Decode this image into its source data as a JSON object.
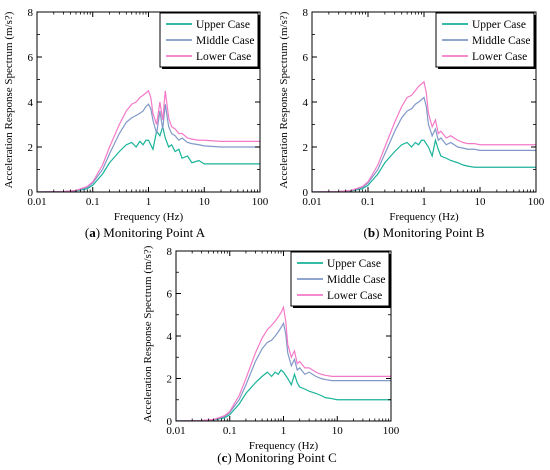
{
  "chart_data": [
    {
      "type": "line",
      "caption_tag": "a",
      "caption_text": "Monitoring Point A",
      "xlabel": "Frequency (Hz)",
      "ylabel": "Acceleration Response Spectrum (m/s?)",
      "xscale": "log",
      "xlim": [
        0.01,
        100
      ],
      "ylim": [
        0,
        8
      ],
      "xticks": [
        0.01,
        0.1,
        1,
        10,
        100
      ],
      "xtick_labels": [
        "0.01",
        "0.1",
        "1",
        "10",
        "100"
      ],
      "yticks": [
        0,
        2,
        4,
        6,
        8
      ],
      "ytick_labels": [
        "0",
        "2",
        "4",
        "6",
        "8"
      ],
      "legend_position": "top-right",
      "series": [
        {
          "name": "Upper Case",
          "color": "#1ab39a",
          "x": [
            0.01,
            0.03,
            0.05,
            0.08,
            0.1,
            0.15,
            0.2,
            0.3,
            0.4,
            0.5,
            0.6,
            0.7,
            0.8,
            0.9,
            1.0,
            1.2,
            1.4,
            1.6,
            1.8,
            2.0,
            2.3,
            2.6,
            3.0,
            3.5,
            4.0,
            5.0,
            6.0,
            8.0,
            10,
            20,
            50,
            100
          ],
          "y": [
            0.0,
            0.02,
            0.05,
            0.15,
            0.3,
            0.8,
            1.3,
            1.8,
            2.1,
            2.2,
            2.0,
            2.25,
            2.1,
            2.3,
            2.3,
            1.9,
            2.7,
            2.5,
            2.9,
            2.4,
            2.0,
            2.1,
            1.8,
            1.9,
            1.5,
            1.6,
            1.3,
            1.4,
            1.25,
            1.25,
            1.25,
            1.25
          ]
        },
        {
          "name": "Middle Case",
          "color": "#8199c8",
          "x": [
            0.01,
            0.03,
            0.05,
            0.08,
            0.1,
            0.15,
            0.2,
            0.3,
            0.4,
            0.5,
            0.6,
            0.7,
            0.8,
            0.9,
            1.0,
            1.1,
            1.2,
            1.4,
            1.6,
            1.8,
            2.0,
            2.3,
            2.6,
            3.0,
            3.5,
            4.0,
            5.0,
            6.0,
            8.0,
            10,
            20,
            50,
            100
          ],
          "y": [
            0.0,
            0.02,
            0.06,
            0.2,
            0.4,
            1.0,
            1.7,
            2.6,
            3.1,
            3.3,
            3.4,
            3.5,
            3.6,
            3.8,
            3.9,
            3.7,
            3.2,
            2.6,
            3.6,
            2.8,
            3.9,
            2.9,
            2.6,
            2.5,
            2.3,
            2.4,
            2.2,
            2.15,
            2.1,
            2.05,
            2.0,
            2.0,
            2.0
          ]
        },
        {
          "name": "Lower Case",
          "color": "#f47ac8",
          "x": [
            0.01,
            0.03,
            0.05,
            0.08,
            0.1,
            0.15,
            0.2,
            0.3,
            0.4,
            0.5,
            0.6,
            0.7,
            0.8,
            0.9,
            1.0,
            1.1,
            1.2,
            1.4,
            1.6,
            1.8,
            2.0,
            2.3,
            2.6,
            3.0,
            3.5,
            4.0,
            5.0,
            6.0,
            8.0,
            10,
            20,
            50,
            100
          ],
          "y": [
            0.0,
            0.02,
            0.07,
            0.25,
            0.45,
            1.2,
            2.0,
            3.0,
            3.6,
            3.9,
            4.0,
            4.2,
            4.3,
            4.4,
            4.5,
            4.2,
            3.5,
            3.0,
            4.0,
            3.2,
            4.5,
            3.3,
            2.9,
            2.8,
            2.6,
            2.6,
            2.4,
            2.35,
            2.3,
            2.3,
            2.25,
            2.25,
            2.25
          ]
        }
      ]
    },
    {
      "type": "line",
      "caption_tag": "b",
      "caption_text": "Monitoring Point B",
      "xlabel": "Frequency (Hz)",
      "ylabel": "Acceleration Response Spectrum (m/s?)",
      "xscale": "log",
      "xlim": [
        0.01,
        100
      ],
      "ylim": [
        0,
        8
      ],
      "xticks": [
        0.01,
        0.1,
        1,
        10,
        100
      ],
      "xtick_labels": [
        "0.01",
        "0.1",
        "1",
        "10",
        "100"
      ],
      "yticks": [
        0,
        2,
        4,
        6,
        8
      ],
      "ytick_labels": [
        "0",
        "2",
        "4",
        "6",
        "8"
      ],
      "legend_position": "top-right",
      "series": [
        {
          "name": "Upper Case",
          "color": "#1ab39a",
          "x": [
            0.01,
            0.03,
            0.05,
            0.08,
            0.1,
            0.15,
            0.2,
            0.3,
            0.4,
            0.5,
            0.6,
            0.7,
            0.8,
            0.9,
            1.0,
            1.2,
            1.4,
            1.6,
            1.8,
            2.0,
            2.5,
            3.0,
            4.0,
            5.0,
            6.0,
            8.0,
            10,
            20,
            50,
            100
          ],
          "y": [
            0.0,
            0.02,
            0.05,
            0.15,
            0.3,
            0.8,
            1.3,
            1.8,
            2.1,
            2.2,
            2.0,
            2.2,
            2.1,
            2.3,
            2.3,
            2.0,
            1.6,
            2.3,
            1.9,
            1.6,
            1.5,
            1.4,
            1.3,
            1.2,
            1.15,
            1.1,
            1.1,
            1.1,
            1.1,
            1.1
          ]
        },
        {
          "name": "Middle Case",
          "color": "#8199c8",
          "x": [
            0.01,
            0.03,
            0.05,
            0.08,
            0.1,
            0.15,
            0.2,
            0.3,
            0.4,
            0.5,
            0.6,
            0.7,
            0.8,
            0.9,
            1.0,
            1.1,
            1.2,
            1.4,
            1.6,
            1.8,
            2.0,
            2.5,
            3.0,
            4.0,
            5.0,
            6.0,
            8.0,
            10,
            20,
            50,
            100
          ],
          "y": [
            0.0,
            0.02,
            0.06,
            0.2,
            0.4,
            1.0,
            1.7,
            2.7,
            3.3,
            3.6,
            3.7,
            3.9,
            4.0,
            4.1,
            4.2,
            3.8,
            3.0,
            2.5,
            2.8,
            2.3,
            2.4,
            2.1,
            2.2,
            2.0,
            1.95,
            1.9,
            1.9,
            1.85,
            1.85,
            1.85,
            1.85
          ]
        },
        {
          "name": "Lower Case",
          "color": "#f47ac8",
          "x": [
            0.01,
            0.03,
            0.05,
            0.08,
            0.1,
            0.15,
            0.2,
            0.3,
            0.4,
            0.5,
            0.6,
            0.7,
            0.8,
            0.9,
            1.0,
            1.1,
            1.2,
            1.4,
            1.6,
            1.8,
            2.0,
            2.5,
            3.0,
            4.0,
            5.0,
            6.0,
            8.0,
            10,
            20,
            50,
            100
          ],
          "y": [
            0.0,
            0.02,
            0.07,
            0.25,
            0.45,
            1.2,
            2.0,
            3.1,
            3.8,
            4.2,
            4.3,
            4.5,
            4.7,
            4.8,
            4.9,
            4.4,
            3.5,
            2.9,
            3.2,
            2.6,
            2.7,
            2.4,
            2.5,
            2.3,
            2.2,
            2.15,
            2.15,
            2.1,
            2.1,
            2.1,
            2.1
          ]
        }
      ]
    },
    {
      "type": "line",
      "caption_tag": "c",
      "caption_text": "Monitoring Point C",
      "xlabel": "Frequency (Hz)",
      "ylabel": "Acceleration Response Spectrum (m/s?)",
      "xscale": "log",
      "xlim": [
        0.01,
        100
      ],
      "ylim": [
        0,
        8
      ],
      "xticks": [
        0.01,
        0.1,
        1,
        10,
        100
      ],
      "xtick_labels": [
        "0.01",
        "0.1",
        "1",
        "10",
        "100"
      ],
      "yticks": [
        0,
        2,
        4,
        6,
        8
      ],
      "ytick_labels": [
        "0",
        "2",
        "4",
        "6",
        "8"
      ],
      "legend_position": "top-right",
      "series": [
        {
          "name": "Upper Case",
          "color": "#1ab39a",
          "x": [
            0.01,
            0.03,
            0.05,
            0.08,
            0.1,
            0.15,
            0.2,
            0.3,
            0.4,
            0.5,
            0.6,
            0.7,
            0.8,
            0.9,
            1.0,
            1.2,
            1.4,
            1.6,
            1.8,
            2.0,
            2.5,
            3.0,
            4.0,
            5.0,
            6.0,
            8.0,
            10,
            20,
            50,
            100
          ],
          "y": [
            0.0,
            0.02,
            0.05,
            0.15,
            0.3,
            0.8,
            1.3,
            1.8,
            2.1,
            2.3,
            2.1,
            2.3,
            2.2,
            2.4,
            2.3,
            2.0,
            1.7,
            2.2,
            1.8,
            1.6,
            1.5,
            1.4,
            1.3,
            1.2,
            1.1,
            1.05,
            1.0,
            1.0,
            1.0,
            1.0
          ]
        },
        {
          "name": "Middle Case",
          "color": "#8199c8",
          "x": [
            0.01,
            0.03,
            0.05,
            0.08,
            0.1,
            0.15,
            0.2,
            0.3,
            0.4,
            0.5,
            0.6,
            0.7,
            0.8,
            0.9,
            1.0,
            1.1,
            1.2,
            1.4,
            1.6,
            1.8,
            2.0,
            2.5,
            3.0,
            4.0,
            5.0,
            6.0,
            8.0,
            10,
            20,
            50,
            100
          ],
          "y": [
            0.0,
            0.02,
            0.06,
            0.2,
            0.4,
            1.0,
            1.7,
            2.8,
            3.4,
            3.7,
            3.8,
            4.0,
            4.2,
            4.4,
            4.6,
            4.1,
            3.2,
            2.6,
            2.9,
            2.4,
            2.5,
            2.2,
            2.3,
            2.1,
            2.0,
            1.95,
            1.9,
            1.9,
            1.9,
            1.9,
            1.9
          ]
        },
        {
          "name": "Lower Case",
          "color": "#f47ac8",
          "x": [
            0.01,
            0.03,
            0.05,
            0.08,
            0.1,
            0.15,
            0.2,
            0.3,
            0.4,
            0.5,
            0.6,
            0.7,
            0.8,
            0.9,
            1.0,
            1.1,
            1.2,
            1.4,
            1.6,
            1.8,
            2.0,
            2.5,
            3.0,
            4.0,
            5.0,
            6.0,
            8.0,
            10,
            20,
            50,
            100
          ],
          "y": [
            0.0,
            0.02,
            0.07,
            0.25,
            0.45,
            1.2,
            2.0,
            3.2,
            3.9,
            4.3,
            4.5,
            4.7,
            4.9,
            5.1,
            5.35,
            4.7,
            3.6,
            3.0,
            3.3,
            2.7,
            2.8,
            2.5,
            2.5,
            2.3,
            2.2,
            2.15,
            2.1,
            2.1,
            2.1,
            2.1,
            2.1
          ]
        }
      ]
    }
  ]
}
